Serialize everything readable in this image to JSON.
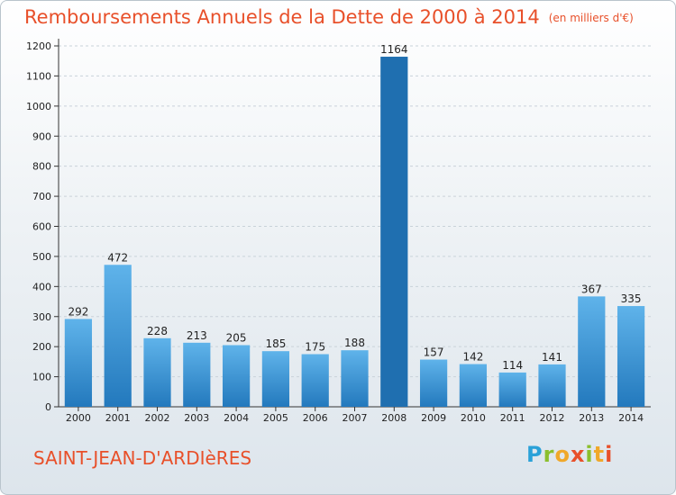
{
  "title": "Remboursements Annuels de la Dette de 2000 à 2014",
  "unit_note": "(en milliers d'€)",
  "place_name": "SAINT-JEAN-D'ARDIèRES",
  "logo": {
    "text": "Proxiti",
    "colors": [
      "#2aa1d8",
      "#8bbf2d",
      "#f0a82a",
      "#e8502a"
    ]
  },
  "colors": {
    "bar_top": "#5fb3ea",
    "bar_bottom": "#2379bd",
    "bar_highlight": "#1f6fb0",
    "title": "#e8502a"
  },
  "chart_data": {
    "type": "bar",
    "categories": [
      "2000",
      "2001",
      "2002",
      "2003",
      "2004",
      "2005",
      "2006",
      "2007",
      "2008",
      "2009",
      "2010",
      "2011",
      "2012",
      "2013",
      "2014"
    ],
    "values": [
      292,
      472,
      228,
      213,
      205,
      185,
      175,
      188,
      1164,
      157,
      142,
      114,
      141,
      367,
      335
    ],
    "highlight_index": 8,
    "ylim": [
      0,
      1200
    ],
    "yticks": [
      0,
      100,
      200,
      300,
      400,
      500,
      600,
      700,
      800,
      900,
      1000,
      1100,
      1200
    ],
    "grid": true,
    "xlabel": "",
    "ylabel": ""
  }
}
